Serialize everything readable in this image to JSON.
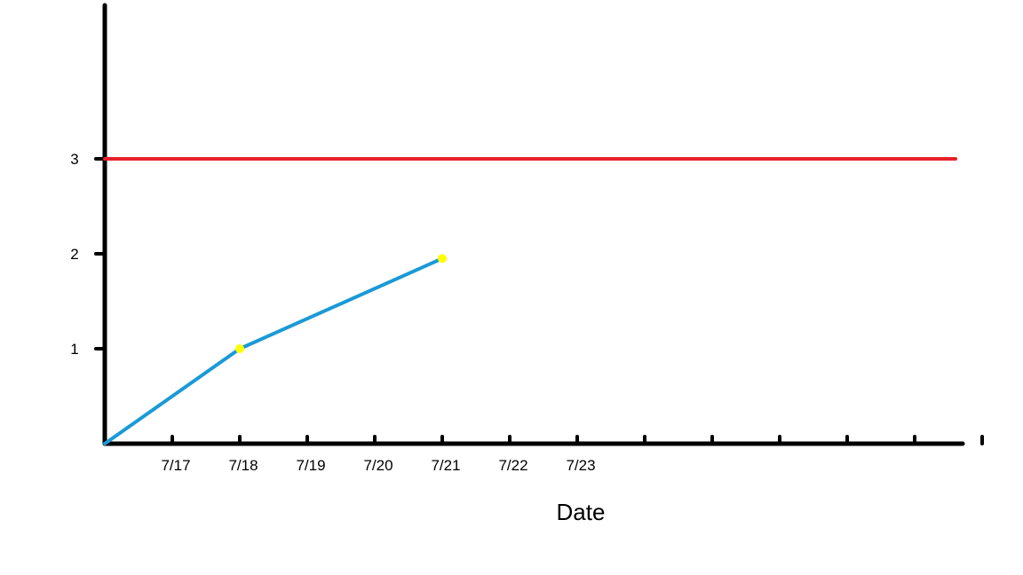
{
  "chart_data": {
    "type": "line",
    "title": "",
    "xlabel": "Date",
    "ylabel": "",
    "x_tick_labels": [
      "7/17",
      "7/18",
      "7/19",
      "7/20",
      "7/21",
      "7/22",
      "7/23"
    ],
    "y_tick_labels": [
      "1",
      "2",
      "3"
    ],
    "xlim": [
      "7/16",
      "7/29"
    ],
    "ylim": [
      0,
      4.6
    ],
    "grid": false,
    "series": [
      {
        "color": "#1a9ad7",
        "marker_color": "#ffff00",
        "points": [
          {
            "x": "7/16",
            "y": 0,
            "marker": false
          },
          {
            "x": "7/18",
            "y": 1,
            "marker": true
          },
          {
            "x": "7/21",
            "y": 1.95,
            "marker": true
          }
        ]
      }
    ],
    "reference_lines": [
      {
        "y": 3,
        "color": "#e8202a"
      }
    ],
    "colors": {
      "axis": "#000000"
    }
  }
}
